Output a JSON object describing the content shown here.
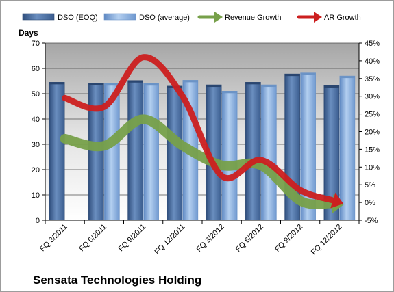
{
  "chart_data": {
    "type": "bar",
    "title": "Sensata Technologies Holding",
    "ylabel_left": "Days",
    "categories": [
      "FQ 3/2011",
      "FQ 6/2011",
      "FQ 9/2011",
      "FQ 12/2011",
      "FQ 3/2012",
      "FQ 6/2012",
      "FQ 9/2012",
      "FQ 12/2012"
    ],
    "y_left": {
      "min": 0,
      "max": 70,
      "ticks": [
        "0",
        "10",
        "20",
        "30",
        "40",
        "50",
        "60",
        "70"
      ]
    },
    "y_right": {
      "min": -5,
      "max": 45,
      "ticks": [
        "-5%",
        "0%",
        "5%",
        "10%",
        "15%",
        "20%",
        "25%",
        "30%",
        "35%",
        "40%",
        "45%"
      ]
    },
    "legend_position": "top",
    "grid": true,
    "series": [
      {
        "name": "DSO (EOQ)",
        "type": "bar",
        "axis": "left",
        "color": "#4f6f9f",
        "values": [
          54.5,
          54.2,
          55.2,
          53.0,
          53.5,
          54.5,
          57.8,
          53.2
        ]
      },
      {
        "name": "DSO (average)",
        "type": "bar",
        "axis": "left",
        "color": "#8fb4e3",
        "values": [
          null,
          54.0,
          54.0,
          55.3,
          51.0,
          53.5,
          58.2,
          57.0
        ]
      },
      {
        "name": "Revenue Growth",
        "type": "line",
        "axis": "right",
        "unit": "%",
        "color": "#77a04a",
        "values": [
          18.0,
          16.0,
          23.5,
          16.0,
          10.5,
          10.5,
          0.5,
          -0.5
        ]
      },
      {
        "name": "AR Growth",
        "type": "line",
        "axis": "right",
        "unit": "%",
        "color": "#cc1f1f",
        "values": [
          29.5,
          27.0,
          41.0,
          30.0,
          7.5,
          12.0,
          3.5,
          0.0
        ]
      }
    ]
  }
}
